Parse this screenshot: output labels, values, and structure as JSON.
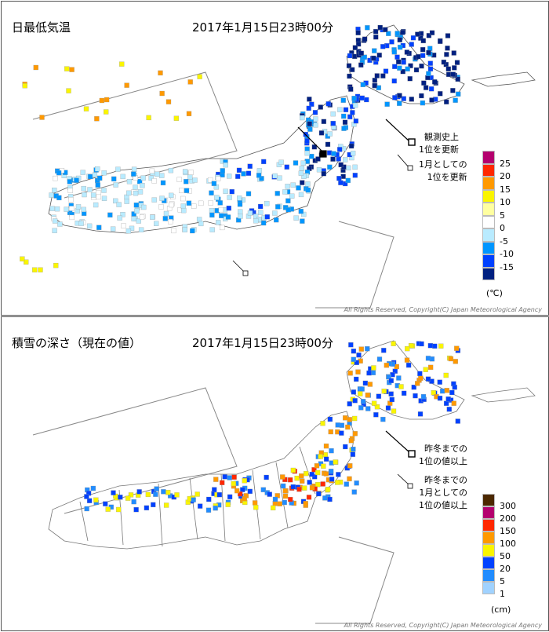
{
  "min_temp_panel": {
    "title": "日最低気温",
    "datetime": "2017年1月15日23時00分",
    "note_record": "観測史上\n1位を更新",
    "note_january": "1月としての\n1位を更新",
    "legend_labels": [
      "25",
      "20",
      "15",
      "10",
      "5",
      "0",
      "-5",
      "-10",
      "-15"
    ],
    "legend_colors": [
      "#b4006e",
      "#ff2800",
      "#ff9900",
      "#faf500",
      "#ffffa0",
      "#ffffff",
      "#b9ebff",
      "#0096ff",
      "#0041ff",
      "#002080"
    ],
    "unit": "(℃)",
    "copyright": "All Rights Reserved, Copyright(C) Japan Meteorological Agency"
  },
  "snow_depth_panel": {
    "title": "積雪の深さ（現在の値）",
    "datetime": "2017年1月15日23時00分",
    "note_record": "昨冬までの\n1位の値以上",
    "note_january": "昨冬までの\n1月としての\n1位の値以上",
    "legend_labels": [
      "300",
      "200",
      "150",
      "100",
      "50",
      "20",
      "5",
      "1"
    ],
    "legend_colors": [
      "#4c2800",
      "#b4006e",
      "#ff2800",
      "#ff9900",
      "#faf500",
      "#0041ff",
      "#218cff",
      "#a0d2ff"
    ],
    "unit": "(cm)",
    "copyright": "All Rights Reserved, Copyright(C) Japan Meteorological Agency"
  }
}
